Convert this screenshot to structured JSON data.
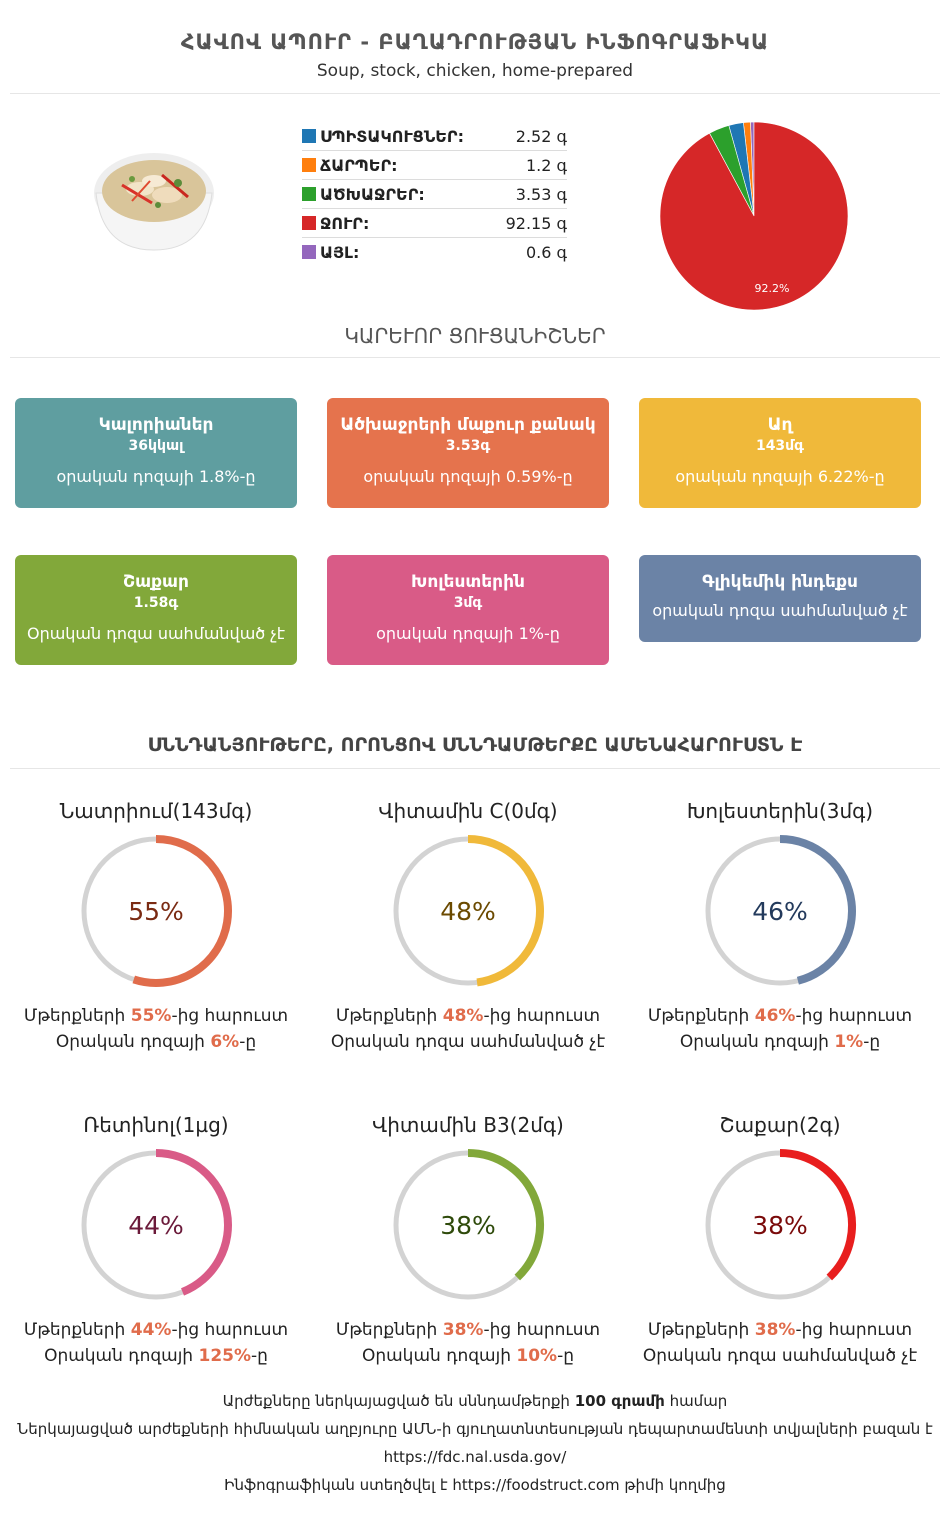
{
  "header": {
    "title": "ՀԱՎՈՎ ԱՊՈՒՐ - ԲԱՂԱԴՐՈՒԹՅԱՆ ԻՆՖՈԳՐԱՖԻԿԱ",
    "subtitle": "Soup, stock, chicken, home-prepared"
  },
  "macros": [
    {
      "label": "ՍՊԻՏԱԿՈՒՑՆԵՐ:",
      "value": "2.52 գ",
      "color": "#1f77b4"
    },
    {
      "label": "ՃԱՐՊԵՐ:",
      "value": "1.2 գ",
      "color": "#ff7f0e"
    },
    {
      "label": "ԱԾԽԱՋՐԵՐ:",
      "value": "3.53 գ",
      "color": "#2ca02c"
    },
    {
      "label": "ՋՈՒՐ:",
      "value": "92.15 գ",
      "color": "#d62728"
    },
    {
      "label": "ԱՅԼ:",
      "value": "0.6 գ",
      "color": "#9467bd"
    }
  ],
  "chart_data": {
    "type": "pie",
    "slices": [
      {
        "name": "Սպիտակուցներ",
        "value": 2.52,
        "color": "#1f77b4"
      },
      {
        "name": "Ճարպեր",
        "value": 1.2,
        "color": "#ff7f0e"
      },
      {
        "name": "Ածխաջրեր",
        "value": 3.53,
        "color": "#2ca02c"
      },
      {
        "name": "Ջուր",
        "value": 92.15,
        "color": "#d62728"
      },
      {
        "name": "Այլ",
        "value": 0.6,
        "color": "#9467bd"
      }
    ],
    "data_label": "92.2%"
  },
  "key_indicators": {
    "title": "ԿԱՐԵՒՈՐ ՑՈՒՑԱՆԻՇՆԵՐ",
    "cards": [
      {
        "title": "Կալորիաներ",
        "value": "36կկալ",
        "note": "օրական դոզայի 1.8%-ը",
        "color": "#5f9ea0"
      },
      {
        "title": "Ածխաջրերի մաքուր քանակ",
        "value": "3.53գ",
        "note": "օրական դոզայի 0.59%-ը",
        "color": "#e5734d"
      },
      {
        "title": "Աղ",
        "value": "143մգ",
        "note": "օրական դոզայի 6.22%-ը",
        "color": "#f0b93a"
      },
      {
        "title": "Շաքար",
        "value": "1.58գ",
        "note": "Օրական դոզա սահմանված չէ",
        "color": "#82a83a"
      },
      {
        "title": "Խոլեստերին",
        "value": "3մգ",
        "note": "օրական դոզայի 1%-ը",
        "color": "#d95b87"
      },
      {
        "title": "Գլիկեմիկ ինդեքս",
        "value": "",
        "note": "օրական դոզա սահմանված չէ",
        "color": "#6b83a6"
      }
    ]
  },
  "nutrients": {
    "title": "ՍՆՆԴԱՆՅՈՒԹԵՐԸ, ՈՐՈՆՑՈՎ ՍՆՆԴԱՄԹԵՐՔԸ ԱՄԵՆԱՀԱՐՈՒՍՏՆ Է",
    "items": [
      {
        "title": "Նատրիում(143մգ)",
        "percent": 55,
        "percent_label": "55%",
        "color": "#e06c4b",
        "text_color": "#7a2a12",
        "line1_pre": "Մթերքների ",
        "line1_bold": "55%",
        "line1_post": "-ից հարուստ",
        "line2_pre": "Օրական դոզայի ",
        "line2_bold": "6%",
        "line2_post": "-ը"
      },
      {
        "title": "Վիտամին C(0մգ)",
        "percent": 48,
        "percent_label": "48%",
        "color": "#f0b93a",
        "text_color": "#6b4a00",
        "line1_pre": "Մթերքների ",
        "line1_bold": "48%",
        "line1_post": "-ից հարուստ",
        "line2_pre": "Օրական դոզա սահմանված չէ",
        "line2_bold": "",
        "line2_post": ""
      },
      {
        "title": "Խոլեստերին(3մգ)",
        "percent": 46,
        "percent_label": "46%",
        "color": "#6b83a6",
        "text_color": "#233a5c",
        "line1_pre": "Մթերքների ",
        "line1_bold": "46%",
        "line1_post": "-ից հարուստ",
        "line2_pre": "Օրական դոզայի ",
        "line2_bold": "1%",
        "line2_post": "-ը"
      },
      {
        "title": "Ռետինոլ(1µg)",
        "percent": 44,
        "percent_label": "44%",
        "color": "#d95b87",
        "text_color": "#6b1a3a",
        "line1_pre": "Մթերքների ",
        "line1_bold": "44%",
        "line1_post": "-ից հարուստ",
        "line2_pre": "Օրական դոզայի ",
        "line2_bold": "125%",
        "line2_post": "-ը"
      },
      {
        "title": "Վիտամին B3(2մգ)",
        "percent": 38,
        "percent_label": "38%",
        "color": "#82a83a",
        "text_color": "#2e4a0a",
        "line1_pre": "Մթերքների ",
        "line1_bold": "38%",
        "line1_post": "-ից հարուստ",
        "line2_pre": "Օրական դոզայի ",
        "line2_bold": "10%",
        "line2_post": "-ը"
      },
      {
        "title": "Շաքար(2գ)",
        "percent": 38,
        "percent_label": "38%",
        "color": "#e81e1e",
        "text_color": "#7a0a0a",
        "line1_pre": "Մթերքների ",
        "line1_bold": "38%",
        "line1_post": "-ից հարուստ",
        "line2_pre": "Օրական դոզա սահմանված չէ",
        "line2_bold": "",
        "line2_post": ""
      }
    ]
  },
  "footer": {
    "line1_pre": "Արժեքները ներկայացված են սննդամթերքի ",
    "line1_bold": "100 գրամի",
    "line1_post": " համար",
    "line2": "Ներկայացված արժեքների հիմնական աղբյուրը ԱՄՆ-ի գյուղատնտեսության դեպարտամենտի տվյալների բազան է",
    "line3": "https://fdc.nal.usda.gov/",
    "line4": "Ինֆոգրաֆիկան ստեղծվել է https://foodstruct.com թիմի կողմից"
  }
}
